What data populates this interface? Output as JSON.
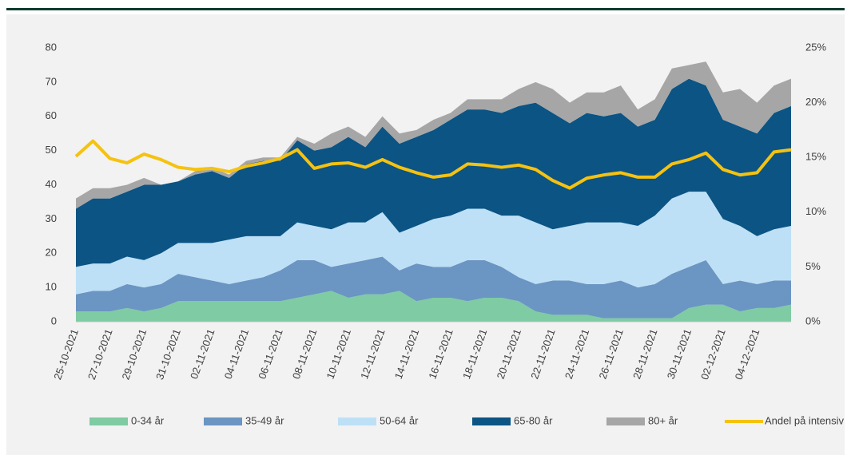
{
  "chart_data": {
    "type": "stacked-area-line",
    "categories": [
      "25-10-2021",
      null,
      "27-10-2021",
      null,
      "29-10-2021",
      null,
      "31-10-2021",
      null,
      "02-11-2021",
      null,
      "04-11-2021",
      null,
      "06-11-2021",
      null,
      "08-11-2021",
      null,
      "10-11-2021",
      null,
      "12-11-2021",
      null,
      "14-11-2021",
      null,
      "16-11-2021",
      null,
      "18-11-2021",
      null,
      "20-11-2021",
      null,
      "22-11-2021",
      null,
      "24-11-2021",
      null,
      "26-11-2021",
      null,
      "28-11-2021",
      null,
      "30-11-2021",
      null,
      "02-12-2021",
      null,
      "04-12-2021",
      null,
      null
    ],
    "series": [
      {
        "name": "0-34 år",
        "color": "#7fcba4",
        "values": [
          3,
          3,
          3,
          4,
          3,
          4,
          6,
          6,
          6,
          6,
          6,
          6,
          6,
          7,
          8,
          9,
          7,
          8,
          8,
          9,
          6,
          7,
          7,
          6,
          7,
          7,
          6,
          3,
          2,
          2,
          2,
          1,
          1,
          1,
          1,
          1,
          4,
          5,
          5,
          3,
          4,
          4,
          5
        ]
      },
      {
        "name": "35-49 år",
        "color": "#6b95c2",
        "values": [
          5,
          6,
          6,
          7,
          7,
          7,
          8,
          7,
          6,
          5,
          6,
          7,
          9,
          11,
          10,
          7,
          10,
          10,
          11,
          6,
          11,
          9,
          9,
          12,
          11,
          9,
          7,
          8,
          10,
          10,
          9,
          10,
          11,
          9,
          10,
          13,
          12,
          13,
          6,
          9,
          7,
          8,
          7
        ]
      },
      {
        "name": "50-64 år",
        "color": "#bde0f6",
        "values": [
          8,
          8,
          8,
          8,
          8,
          9,
          9,
          10,
          11,
          13,
          13,
          12,
          10,
          11,
          10,
          11,
          12,
          11,
          13,
          11,
          11,
          14,
          15,
          15,
          15,
          15,
          18,
          18,
          15,
          16,
          18,
          18,
          17,
          18,
          20,
          22,
          22,
          20,
          19,
          16,
          14,
          15,
          16
        ]
      },
      {
        "name": "65-80 år",
        "color": "#0b5484",
        "values": [
          17,
          19,
          19,
          19,
          22,
          20,
          18,
          20,
          21,
          18,
          21,
          22,
          22,
          24,
          22,
          24,
          25,
          22,
          25,
          26,
          26,
          26,
          28,
          29,
          29,
          30,
          32,
          35,
          34,
          30,
          32,
          31,
          32,
          29,
          28,
          32,
          33,
          31,
          29,
          29,
          30,
          34,
          35
        ]
      },
      {
        "name": "80+ år",
        "color": "#a6a6a6",
        "values": [
          3,
          3,
          3,
          2,
          2,
          0,
          0,
          1,
          1,
          1,
          1,
          1,
          1,
          1,
          2,
          4,
          3,
          3,
          3,
          3,
          2,
          3,
          2,
          3,
          3,
          4,
          5,
          6,
          7,
          6,
          6,
          7,
          8,
          5,
          6,
          6,
          4,
          7,
          8,
          11,
          9,
          8,
          8
        ]
      },
      {
        "name": "Andel på intensiv",
        "color": "#f5c211",
        "axis": "y2",
        "values": [
          15.1,
          16.5,
          14.9,
          14.5,
          15.3,
          14.8,
          14.1,
          13.9,
          14.0,
          13.7,
          14.2,
          14.5,
          14.9,
          15.7,
          14.0,
          14.4,
          14.5,
          14.1,
          14.8,
          14.1,
          13.6,
          13.2,
          13.4,
          14.4,
          14.3,
          14.1,
          14.3,
          13.9,
          12.9,
          12.2,
          13.1,
          13.4,
          13.6,
          13.2,
          13.2,
          14.4,
          14.8,
          15.4,
          13.9,
          13.4,
          13.6,
          15.5,
          15.7
        ]
      }
    ],
    "ylim": [
      0,
      80
    ],
    "yticks": [
      0,
      10,
      20,
      30,
      40,
      50,
      60,
      70,
      80
    ],
    "y2lim": [
      0,
      25
    ],
    "y2ticks": [
      {
        "value": 0,
        "label": "0%"
      },
      {
        "value": 5,
        "label": "5%"
      },
      {
        "value": 10,
        "label": "10%"
      },
      {
        "value": 15,
        "label": "15%"
      },
      {
        "value": 20,
        "label": "20%"
      },
      {
        "value": 25,
        "label": "25%"
      }
    ],
    "legend": "bottom"
  }
}
